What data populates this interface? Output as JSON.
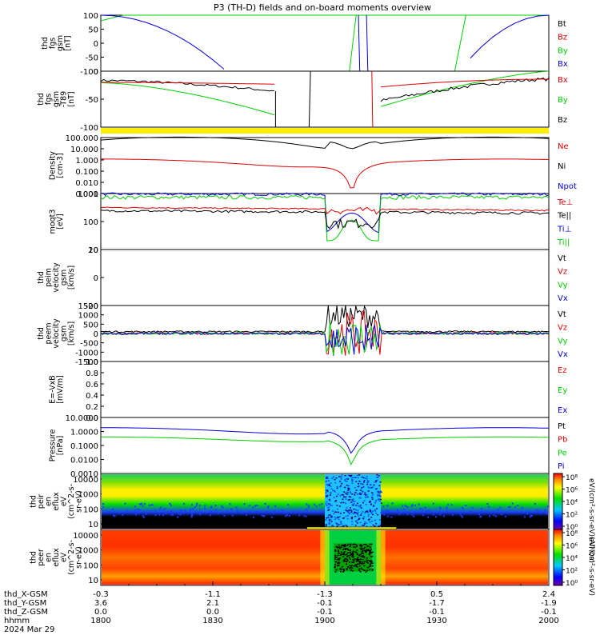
{
  "title": "P3 (TH-D) fields and on-board moments overview",
  "colors": {
    "black": "#000000",
    "red": "#dd0000",
    "green": "#00cc00",
    "blue": "#0000dd",
    "yellow": "#ffee00"
  },
  "chart_data": [
    {
      "type": "line",
      "id": "fgs_gsm",
      "ylabel_lines": [
        "thd",
        "fgs",
        "gsm",
        "[nT]"
      ],
      "ylim": [
        -100,
        100
      ],
      "yticks": [
        "100",
        "50",
        "0",
        "-50",
        "-100"
      ],
      "legend": [
        "Bt",
        "Bz",
        "By",
        "Bx"
      ],
      "legend_colors": [
        "black",
        "red",
        "green",
        "blue"
      ]
    },
    {
      "type": "line",
      "id": "fgs_gsm_sub",
      "ylabel_lines": [
        "thd",
        "fgs",
        "gsm",
        "-T89",
        "[nT]"
      ],
      "ylim": [
        -120,
        20
      ],
      "yticks": [
        "0",
        "-50",
        "-100"
      ],
      "legend": [
        "Bx",
        "By",
        "Bz"
      ],
      "legend_colors": [
        "red",
        "green",
        "black"
      ]
    },
    {
      "type": "line",
      "id": "density",
      "ylabel_lines": [
        "Density",
        "[cm-3]"
      ],
      "scale": "log",
      "yticks": [
        "100.000",
        "10.000",
        "1.000",
        "0.100",
        "0.010",
        "0.001"
      ],
      "legend": [
        "Ne",
        "Ni",
        "Npot"
      ],
      "legend_colors": [
        "red",
        "black",
        "blue"
      ]
    },
    {
      "type": "line",
      "id": "temperature",
      "ylabel_lines": [
        "moqt3",
        "[eV]"
      ],
      "scale": "log",
      "yticks": [
        "1000",
        "100",
        "10"
      ],
      "legend": [
        "Te⊥",
        "Te||",
        "Ti⊥",
        "Ti||"
      ],
      "legend_colors": [
        "red",
        "black",
        "blue",
        "green"
      ]
    },
    {
      "type": "line",
      "id": "peim_velocity",
      "ylabel_lines": [
        "thd",
        "peim",
        "velocity",
        "gsm",
        "[km/s]"
      ],
      "ylim": [
        -30,
        40
      ],
      "yticks": [
        "20",
        "0",
        "-20"
      ],
      "legend": [
        "Vt",
        "Vz",
        "Vy",
        "Vx"
      ],
      "legend_colors": [
        "black",
        "red",
        "green",
        "blue"
      ]
    },
    {
      "type": "line",
      "id": "peem_velocity",
      "ylabel_lines": [
        "thd",
        "peem",
        "velocity",
        "gsm",
        "[km/s]"
      ],
      "ylim": [
        -1500,
        1500
      ],
      "yticks": [
        "1500",
        "1000",
        "500",
        "0",
        "-500",
        "-1000",
        "-1500"
      ],
      "legend": [
        "Vt",
        "Vz",
        "Vy",
        "Vx"
      ],
      "legend_colors": [
        "black",
        "red",
        "green",
        "blue"
      ]
    },
    {
      "type": "line",
      "id": "efield",
      "ylabel_lines": [
        "E=-VxB",
        "[mV/m]"
      ],
      "ylim": [
        0,
        1
      ],
      "yticks": [
        "1.0",
        "0.8",
        "0.6",
        "0.4",
        "0.2",
        "0.0"
      ],
      "legend": [
        "Ez",
        "Ey",
        "Ex"
      ],
      "legend_colors": [
        "red",
        "green",
        "blue"
      ]
    },
    {
      "type": "line",
      "id": "pressure",
      "ylabel_lines": [
        "Pressure",
        "[nPa]"
      ],
      "scale": "log",
      "yticks": [
        "10.0000",
        "1.0000",
        "0.1000",
        "0.0100",
        "0.0010"
      ],
      "legend": [
        "Pt",
        "Pb",
        "Pe",
        "Pi"
      ],
      "legend_colors": [
        "black",
        "red",
        "green",
        "blue"
      ]
    },
    {
      "type": "heatmap",
      "id": "peir_eflux",
      "ylabel_lines": [
        "thd",
        "peir",
        "en",
        "eflux",
        "eV",
        "(cm^2-s-",
        "sr-eV)"
      ],
      "scale": "log",
      "yticks": [
        "10000",
        "1000",
        "100",
        "10"
      ]
    },
    {
      "type": "heatmap",
      "id": "peer_eflux",
      "ylabel_lines": [
        "thd",
        "peer",
        "en",
        "eflux",
        "eV",
        "(cm^2-s-",
        "sr-eV)"
      ],
      "scale": "log",
      "yticks": [
        "10000",
        "1000",
        "100",
        "10"
      ]
    }
  ],
  "colorbar": {
    "labels_upper": [
      "10⁸",
      "10⁶",
      "10⁴",
      "10²",
      "10⁰"
    ],
    "labels_lower": [
      "10⁸",
      "10⁶",
      "10⁴",
      "10²",
      "10⁰"
    ],
    "title_upper": "eV/(cm²-s-sr-eV)(All Qs)",
    "title_lower": "eV/(cm²-s-sr-eV)"
  },
  "xaxis": {
    "rows": [
      {
        "label": "thd_X-GSM",
        "values": [
          "-0.3",
          "-1.1",
          "-1.3",
          "0.5",
          "2.4"
        ]
      },
      {
        "label": "thd_Y-GSM",
        "values": [
          "3.6",
          "2.1",
          "-0.1",
          "-1.7",
          "-1.9"
        ]
      },
      {
        "label": "thd_Z-GSM",
        "values": [
          "0.0",
          "0.0",
          "-0.1",
          "-0.1",
          "-0.1"
        ]
      },
      {
        "label": "hhmm",
        "values": [
          "1800",
          "1830",
          "1900",
          "1930",
          "2000"
        ]
      }
    ],
    "date": "2024 Mar 29"
  }
}
